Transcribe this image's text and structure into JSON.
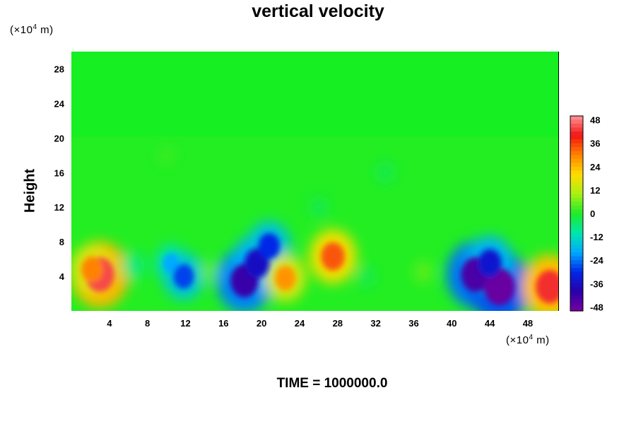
{
  "chart_data": {
    "type": "heatmap",
    "title": "vertical velocity",
    "ylabel": "Height",
    "x_unit_prefix": "(×10",
    "x_unit_exp": "4",
    "x_unit_suffix": " m)",
    "y_unit_prefix": "(×10",
    "y_unit_exp": "4",
    "y_unit_suffix": " m)",
    "xlim": [
      0,
      51.2
    ],
    "ylim": [
      0,
      30
    ],
    "x_ticks": [
      "4",
      "8",
      "12",
      "16",
      "20",
      "24",
      "28",
      "32",
      "36",
      "40",
      "44",
      "48"
    ],
    "y_ticks": [
      "4",
      "8",
      "12",
      "16",
      "20",
      "24",
      "28"
    ],
    "colorbar": {
      "range": [
        -50,
        50
      ],
      "ticks": [
        "48",
        "36",
        "24",
        "12",
        "0",
        "-12",
        "-24",
        "-36",
        "-48"
      ]
    },
    "features": [
      {
        "x": 3,
        "y": 4.2,
        "value": 44
      },
      {
        "x": 2.2,
        "y": 4.8,
        "value": 30
      },
      {
        "x": 6.5,
        "y": 5.2,
        "value": -12
      },
      {
        "x": 10.5,
        "y": 5.5,
        "value": -20
      },
      {
        "x": 11.8,
        "y": 4,
        "value": -28
      },
      {
        "x": 14.5,
        "y": 4.5,
        "value": 8
      },
      {
        "x": 18.2,
        "y": 3.5,
        "value": -42
      },
      {
        "x": 19.5,
        "y": 5.5,
        "value": -36
      },
      {
        "x": 20.8,
        "y": 7.5,
        "value": -30
      },
      {
        "x": 22.5,
        "y": 3.8,
        "value": 28
      },
      {
        "x": 27.5,
        "y": 6.3,
        "value": 34
      },
      {
        "x": 31,
        "y": 4,
        "value": -6
      },
      {
        "x": 37,
        "y": 4.5,
        "value": 8
      },
      {
        "x": 42.5,
        "y": 4.2,
        "value": -44
      },
      {
        "x": 45,
        "y": 2.8,
        "value": -48
      },
      {
        "x": 44,
        "y": 5.5,
        "value": -34
      },
      {
        "x": 50.3,
        "y": 2.8,
        "value": 42
      },
      {
        "x": 26,
        "y": 12,
        "value": -6
      },
      {
        "x": 33,
        "y": 16,
        "value": -6
      },
      {
        "x": 10,
        "y": 18,
        "value": 4
      }
    ]
  },
  "time_label": "TIME = 1000000.0"
}
